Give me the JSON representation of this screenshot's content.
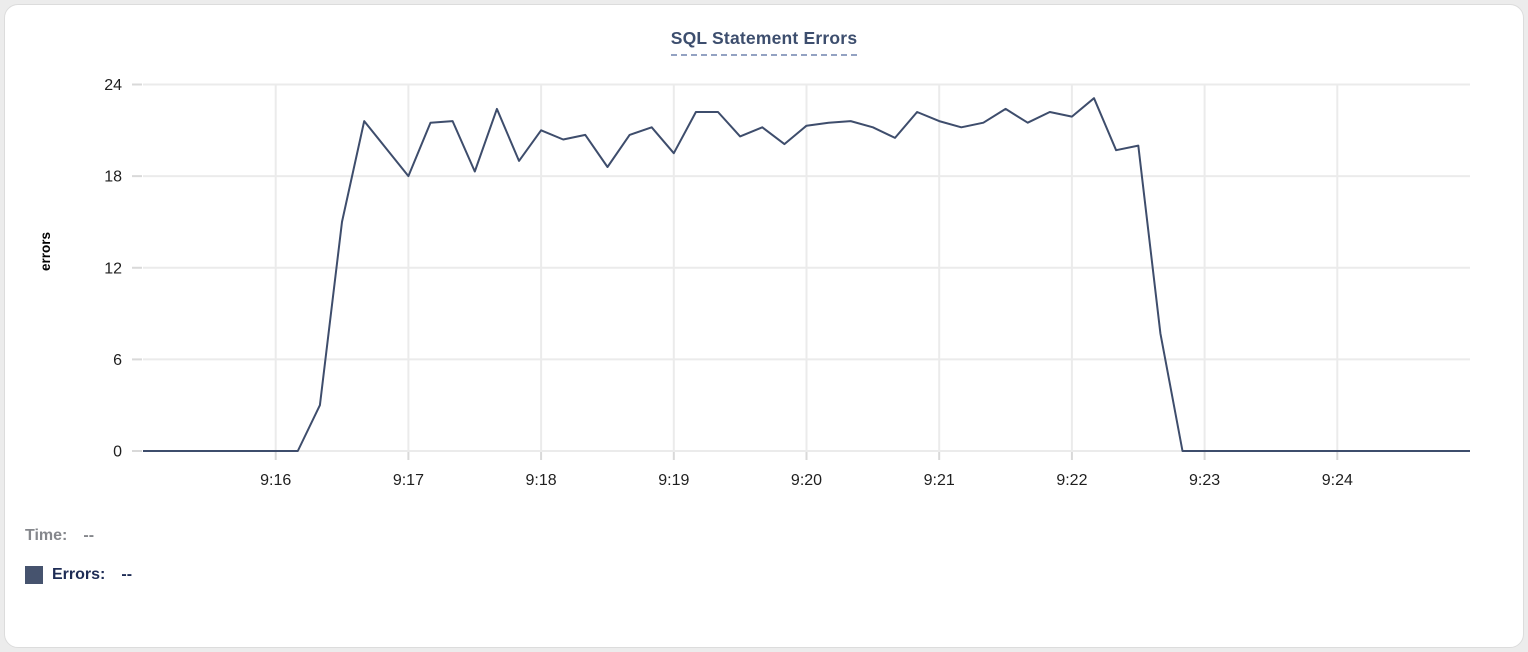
{
  "card": {
    "title": "SQL Statement Errors"
  },
  "y_axis": {
    "label": "errors"
  },
  "footer": {
    "time_label": "Time:",
    "time_value": "--",
    "errors_label": "Errors:",
    "errors_value": "--"
  },
  "colors": {
    "line": "#3e4d6c",
    "title": "#3d4e6e",
    "title_underline": "#93a2c2",
    "grid": "#ebebeb",
    "tick_mark": "#d9d9d9",
    "tick_text": "#1f1f1f",
    "time_label": "#85878c",
    "errors_label": "#1e2c55",
    "legend_swatch": "#46536e",
    "card_border": "#dcdcdc"
  },
  "chart_data": {
    "type": "line",
    "title": "SQL Statement Errors",
    "xlabel": "",
    "ylabel": "errors",
    "ylim": [
      0,
      24
    ],
    "y_ticks": [
      0,
      6,
      12,
      18,
      24
    ],
    "x_tick_labels": [
      "9:16",
      "9:17",
      "9:18",
      "9:19",
      "9:20",
      "9:21",
      "9:22",
      "9:23",
      "9:24"
    ],
    "x_range": [
      "9:15:00",
      "9:25:00"
    ],
    "interval_seconds": 10,
    "grid": true,
    "legend_position": "bottom-left",
    "series": [
      {
        "name": "Errors",
        "color": "#3e4d6c",
        "x": [
          "9:15:00",
          "9:15:10",
          "9:15:20",
          "9:15:30",
          "9:15:40",
          "9:15:50",
          "9:16:00",
          "9:16:10",
          "9:16:20",
          "9:16:30",
          "9:16:40",
          "9:16:50",
          "9:17:00",
          "9:17:10",
          "9:17:20",
          "9:17:30",
          "9:17:40",
          "9:17:50",
          "9:18:00",
          "9:18:10",
          "9:18:20",
          "9:18:30",
          "9:18:40",
          "9:18:50",
          "9:19:00",
          "9:19:10",
          "9:19:20",
          "9:19:30",
          "9:19:40",
          "9:19:50",
          "9:20:00",
          "9:20:10",
          "9:20:20",
          "9:20:30",
          "9:20:40",
          "9:20:50",
          "9:21:00",
          "9:21:10",
          "9:21:20",
          "9:21:30",
          "9:21:40",
          "9:21:50",
          "9:22:00",
          "9:22:10",
          "9:22:20",
          "9:22:30",
          "9:22:40",
          "9:22:50",
          "9:23:00",
          "9:23:10",
          "9:23:20",
          "9:23:30",
          "9:23:40",
          "9:23:50",
          "9:24:00",
          "9:24:10",
          "9:24:20",
          "9:24:30",
          "9:24:40",
          "9:24:50",
          "9:25:00"
        ],
        "values": [
          0,
          0,
          0,
          0,
          0,
          0,
          0,
          0,
          3,
          15,
          21.6,
          19.8,
          18,
          21.5,
          21.6,
          18.3,
          22.4,
          19,
          21,
          20.4,
          20.7,
          18.6,
          20.7,
          21.2,
          19.5,
          22.2,
          22.2,
          20.6,
          21.2,
          20.1,
          21.3,
          21.5,
          21.6,
          21.2,
          20.5,
          22.2,
          21.6,
          21.2,
          21.5,
          22.4,
          21.5,
          22.2,
          21.9,
          23.1,
          19.7,
          20,
          7.7,
          0,
          0,
          0,
          0,
          0,
          0,
          0,
          0,
          0,
          0,
          0,
          0,
          0,
          0
        ]
      }
    ]
  }
}
